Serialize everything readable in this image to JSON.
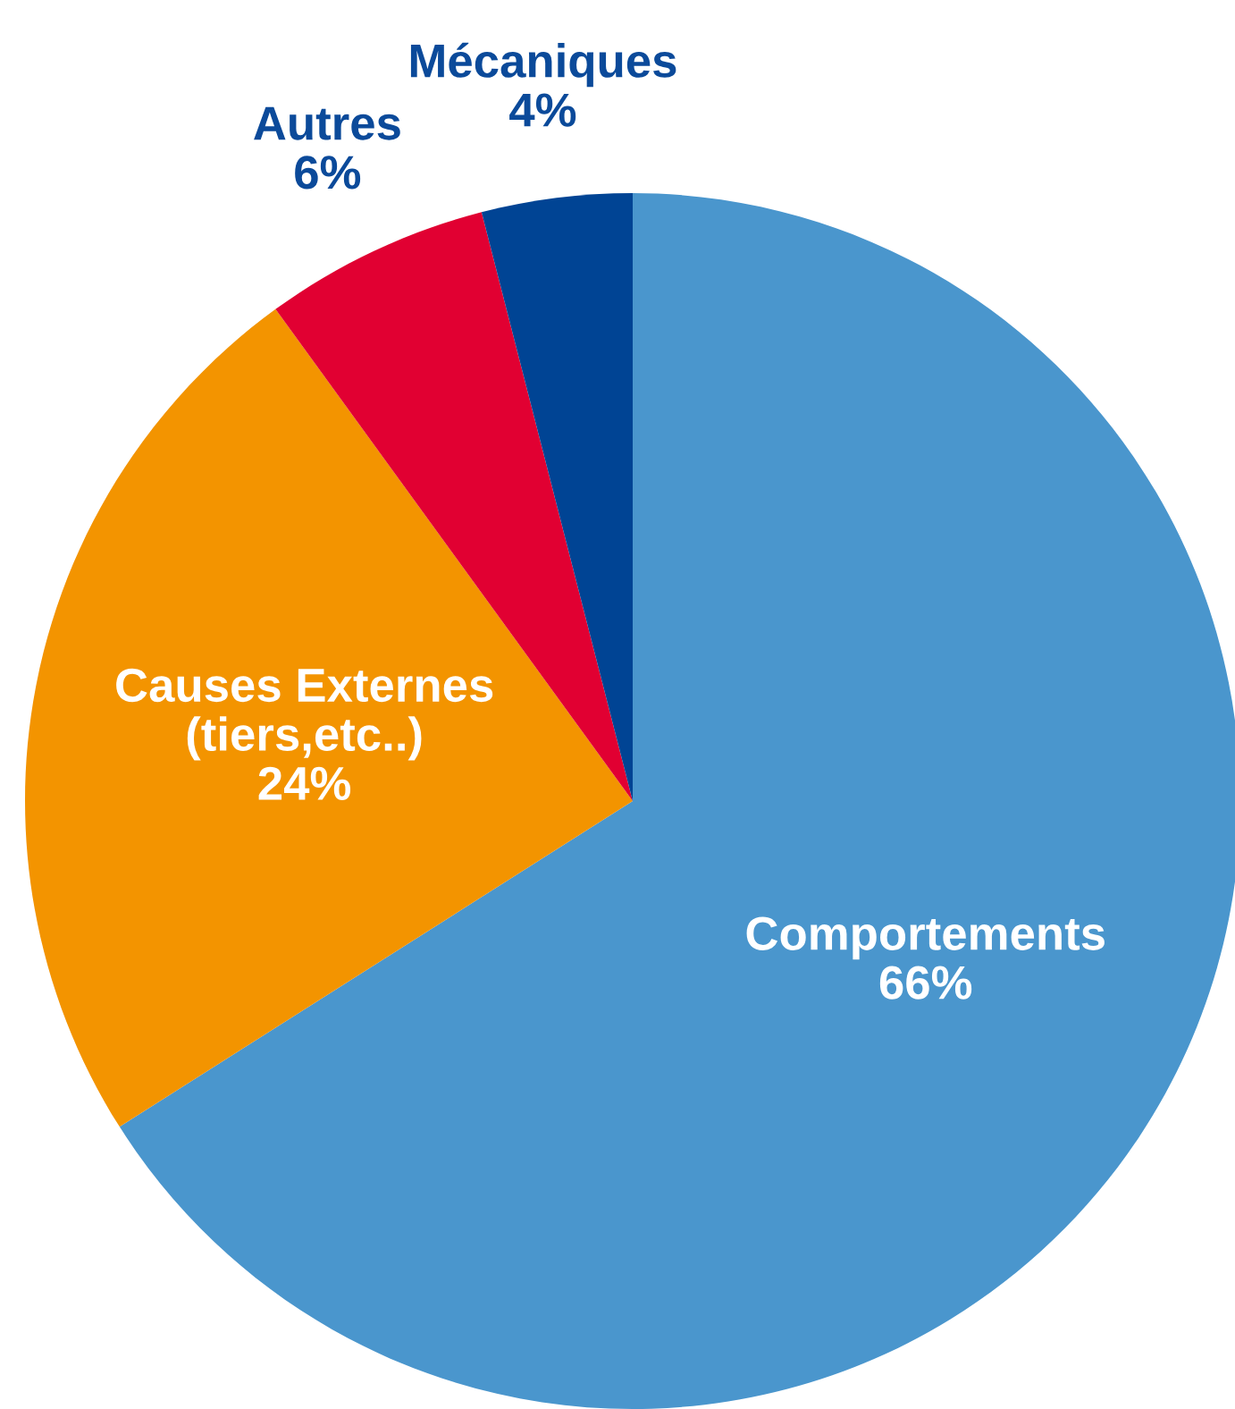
{
  "chart_data": {
    "type": "pie",
    "categories": [
      "Comportements",
      "Causes Externes\n(tiers,etc..)",
      "Autres",
      "Mécaniques"
    ],
    "values": [
      66,
      24,
      6,
      4
    ],
    "colors": [
      "#4a96cd",
      "#f39400",
      "#e10032",
      "#004494"
    ],
    "value_labels": [
      "66%",
      "24%",
      "6%",
      "4%"
    ],
    "legend": false
  }
}
